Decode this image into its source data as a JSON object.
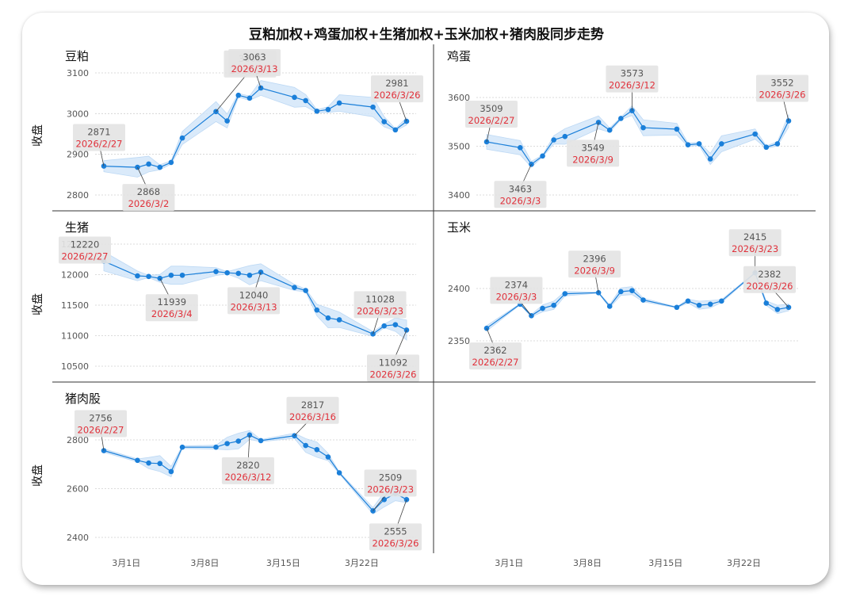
{
  "title": "豆粕加权+鸡蛋加权+生猪加权+玉米加权+猪肉股同步走势",
  "colors": {
    "line": "#1a7fd9",
    "band": "#d4e7fa",
    "band_edge": "#b3d3f3",
    "annotation_box": "#e4e4e4",
    "date_text": "#e0303a",
    "grid": "#cfcfcf",
    "divider": "#333333"
  },
  "xaxis_ticks": [
    "3月1日",
    "3月8日",
    "3月15日",
    "3月22日"
  ],
  "chart_data": [
    {
      "type": "line",
      "title": "豆粕",
      "ylabel": "收盘",
      "yticks": [
        2800,
        2900,
        3000,
        3100
      ],
      "ylim": [
        2775,
        3125
      ],
      "x": [
        "2026-02-27",
        "2026-03-02",
        "2026-03-03",
        "2026-03-04",
        "2026-03-05",
        "2026-03-06",
        "2026-03-09",
        "2026-03-10",
        "2026-03-11",
        "2026-03-12",
        "2026-03-13",
        "2026-03-16",
        "2026-03-17",
        "2026-03-18",
        "2026-03-19",
        "2026-03-20",
        "2026-03-23",
        "2026-03-24",
        "2026-03-25",
        "2026-03-26"
      ],
      "values": [
        2871,
        2868,
        2876,
        2868,
        2880,
        2940,
        3005,
        2982,
        3045,
        3038,
        3063,
        3040,
        3032,
        3006,
        3010,
        3026,
        3016,
        2980,
        2960,
        2981
      ],
      "annotations": [
        {
          "value": "2871",
          "date": "2026/2/27"
        },
        {
          "value": "2868",
          "date": "2026/3/2"
        },
        {
          "value": "3005",
          "date": "2026/3/9"
        },
        {
          "value": "3063",
          "date": "2026/3/13"
        },
        {
          "value": "2981",
          "date": "2026/3/26"
        }
      ]
    },
    {
      "type": "line",
      "title": "鸡蛋",
      "ylabel": "",
      "yticks": [
        3400,
        3500,
        3600
      ],
      "ylim": [
        3388,
        3630
      ],
      "x": [
        "2026-02-27",
        "2026-03-02",
        "2026-03-03",
        "2026-03-04",
        "2026-03-05",
        "2026-03-06",
        "2026-03-09",
        "2026-03-10",
        "2026-03-11",
        "2026-03-12",
        "2026-03-13",
        "2026-03-16",
        "2026-03-17",
        "2026-03-18",
        "2026-03-19",
        "2026-03-20",
        "2026-03-23",
        "2026-03-24",
        "2026-03-25",
        "2026-03-26"
      ],
      "values": [
        3509,
        3497,
        3463,
        3480,
        3513,
        3520,
        3549,
        3533,
        3557,
        3573,
        3538,
        3535,
        3503,
        3505,
        3474,
        3505,
        3525,
        3498,
        3505,
        3552
      ],
      "annotations": [
        {
          "value": "3509",
          "date": "2026/2/27"
        },
        {
          "value": "3463",
          "date": "2026/3/3"
        },
        {
          "value": "3549",
          "date": "2026/3/9"
        },
        {
          "value": "3573",
          "date": "2026/3/12"
        },
        {
          "value": "3552",
          "date": "2026/3/26"
        }
      ]
    },
    {
      "type": "line",
      "title": "生猪",
      "ylabel": "收盘",
      "yticks": [
        10500,
        11000,
        11500,
        12000,
        12500
      ],
      "ylim": [
        10400,
        12580
      ],
      "x": [
        "2026-02-27",
        "2026-03-02",
        "2026-03-03",
        "2026-03-04",
        "2026-03-05",
        "2026-03-06",
        "2026-03-09",
        "2026-03-10",
        "2026-03-11",
        "2026-03-12",
        "2026-03-13",
        "2026-03-16",
        "2026-03-17",
        "2026-03-18",
        "2026-03-19",
        "2026-03-20",
        "2026-03-23",
        "2026-03-24",
        "2026-03-25",
        "2026-03-26"
      ],
      "values": [
        12220,
        11980,
        11970,
        11939,
        11990,
        11990,
        12050,
        12030,
        12020,
        11990,
        12040,
        11790,
        11740,
        11420,
        11290,
        11260,
        11028,
        11160,
        11180,
        11092
      ],
      "annotations": [
        {
          "value": "12220",
          "date": "2026/2/27"
        },
        {
          "value": "11939",
          "date": "2026/3/4"
        },
        {
          "value": "12040",
          "date": "2026/3/13"
        },
        {
          "value": "11028",
          "date": "2026/3/23"
        },
        {
          "value": "11092",
          "date": "2026/3/26"
        }
      ]
    },
    {
      "type": "line",
      "title": "玉米",
      "ylabel": "",
      "yticks": [
        2350,
        2400
      ],
      "ylim": [
        2333,
        2432
      ],
      "x": [
        "2026-02-27",
        "2026-03-02",
        "2026-03-03",
        "2026-03-04",
        "2026-03-05",
        "2026-03-06",
        "2026-03-09",
        "2026-03-10",
        "2026-03-11",
        "2026-03-12",
        "2026-03-13",
        "2026-03-16",
        "2026-03-17",
        "2026-03-18",
        "2026-03-19",
        "2026-03-20",
        "2026-03-23",
        "2026-03-24",
        "2026-03-25",
        "2026-03-26"
      ],
      "values": [
        2362,
        2385,
        2374,
        2381,
        2384,
        2395,
        2396,
        2383,
        2397,
        2398,
        2389,
        2382,
        2388,
        2384,
        2385,
        2388,
        2415,
        2386,
        2380,
        2382
      ],
      "annotations": [
        {
          "value": "2362",
          "date": "2026/2/27"
        },
        {
          "value": "2374",
          "date": "2026/3/3"
        },
        {
          "value": "2396",
          "date": "2026/3/9"
        },
        {
          "value": "2415",
          "date": "2026/3/23"
        },
        {
          "value": "2382",
          "date": "2026/3/26"
        }
      ]
    },
    {
      "type": "line",
      "title": "猪肉股",
      "ylabel": "收盘",
      "yticks": [
        2400,
        2600,
        2800
      ],
      "ylim": [
        2370,
        2885
      ],
      "x": [
        "2026-02-27",
        "2026-03-02",
        "2026-03-03",
        "2026-03-04",
        "2026-03-05",
        "2026-03-06",
        "2026-03-09",
        "2026-03-10",
        "2026-03-11",
        "2026-03-12",
        "2026-03-13",
        "2026-03-16",
        "2026-03-17",
        "2026-03-18",
        "2026-03-19",
        "2026-03-20",
        "2026-03-23",
        "2026-03-24",
        "2026-03-25",
        "2026-03-26"
      ],
      "values": [
        2756,
        2716,
        2705,
        2703,
        2670,
        2770,
        2770,
        2785,
        2795,
        2820,
        2797,
        2817,
        2777,
        2760,
        2730,
        2665,
        2509,
        2555,
        2580,
        2555
      ],
      "annotations": [
        {
          "value": "2756",
          "date": "2026/2/27"
        },
        {
          "value": "2820",
          "date": "2026/3/12"
        },
        {
          "value": "2817",
          "date": "2026/3/16"
        },
        {
          "value": "2509",
          "date": "2026/3/23"
        },
        {
          "value": "2555",
          "date": "2026/3/26"
        }
      ]
    }
  ]
}
